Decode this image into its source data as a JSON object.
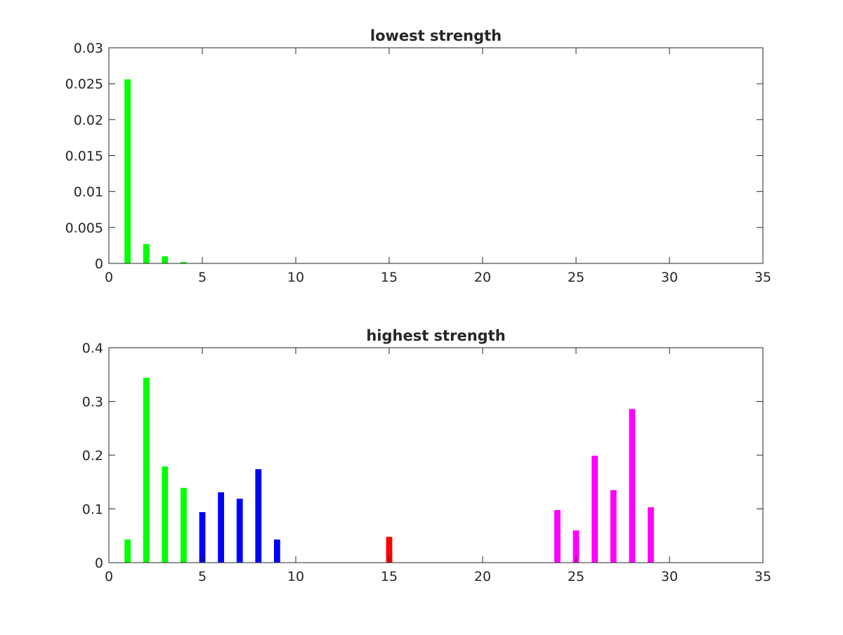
{
  "chart_data": [
    {
      "type": "bar",
      "title": "lowest strength",
      "xlabel": "",
      "ylabel": "",
      "xlim": [
        0,
        35
      ],
      "ylim": [
        0,
        0.03
      ],
      "xticks": [
        "0",
        "5",
        "10",
        "15",
        "20",
        "25",
        "30",
        "35"
      ],
      "yticks": [
        "0",
        "0.005",
        "0.01",
        "0.015",
        "0.02",
        "0.025",
        "0.03"
      ],
      "grid": false,
      "bars": [
        {
          "x": 1,
          "value": 0.0256,
          "color": "#00ff00"
        },
        {
          "x": 2,
          "value": 0.0027,
          "color": "#00ff00"
        },
        {
          "x": 3,
          "value": 0.001,
          "color": "#00ff00"
        },
        {
          "x": 4,
          "value": 0.0002,
          "color": "#00ff00"
        }
      ]
    },
    {
      "type": "bar",
      "title": "highest strength",
      "xlabel": "",
      "ylabel": "",
      "xlim": [
        0,
        35
      ],
      "ylim": [
        0,
        0.4
      ],
      "xticks": [
        "0",
        "5",
        "10",
        "15",
        "20",
        "25",
        "30",
        "35"
      ],
      "yticks": [
        "0",
        "0.1",
        "0.2",
        "0.3",
        "0.4"
      ],
      "grid": false,
      "bars": [
        {
          "x": 1,
          "value": 0.043,
          "color": "#00ff00"
        },
        {
          "x": 2,
          "value": 0.344,
          "color": "#00ff00"
        },
        {
          "x": 3,
          "value": 0.179,
          "color": "#00ff00"
        },
        {
          "x": 4,
          "value": 0.139,
          "color": "#00ff00"
        },
        {
          "x": 5,
          "value": 0.094,
          "color": "#0000ff"
        },
        {
          "x": 6,
          "value": 0.131,
          "color": "#0000ff"
        },
        {
          "x": 7,
          "value": 0.119,
          "color": "#0000ff"
        },
        {
          "x": 8,
          "value": 0.174,
          "color": "#0000ff"
        },
        {
          "x": 9,
          "value": 0.043,
          "color": "#0000ff"
        },
        {
          "x": 15,
          "value": 0.048,
          "color": "#ff0000"
        },
        {
          "x": 24,
          "value": 0.098,
          "color": "#ff00ff"
        },
        {
          "x": 25,
          "value": 0.06,
          "color": "#ff00ff"
        },
        {
          "x": 26,
          "value": 0.199,
          "color": "#ff00ff"
        },
        {
          "x": 27,
          "value": 0.135,
          "color": "#ff00ff"
        },
        {
          "x": 28,
          "value": 0.286,
          "color": "#ff00ff"
        },
        {
          "x": 29,
          "value": 0.103,
          "color": "#ff00ff"
        }
      ]
    }
  ]
}
